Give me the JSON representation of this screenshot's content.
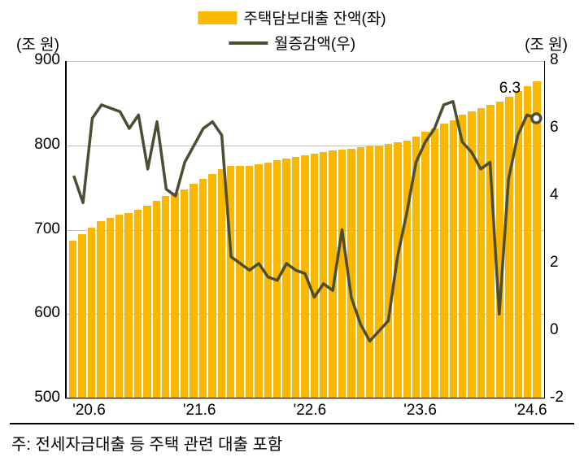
{
  "chart": {
    "type": "bar+line",
    "background_color": "#ffffff",
    "grid_color": "#bfbfbf",
    "axis_color": "#000000",
    "text_color": "#000000",
    "legend": {
      "bar": {
        "label": "주택담보대출 잔액(좌)",
        "color": "#f9b700"
      },
      "line": {
        "label": "월증감액(우)",
        "color": "#4d4d33"
      }
    },
    "y_left": {
      "title": "(조 원)",
      "min": 500,
      "max": 900,
      "ticks": [
        500,
        600,
        700,
        800,
        900
      ]
    },
    "y_right": {
      "title": "(조 원)",
      "min": -2,
      "max": 8,
      "ticks": [
        -2,
        0,
        2,
        4,
        6,
        8
      ]
    },
    "x_ticks": [
      "'20.6",
      "'21.6",
      "'22.6",
      "'23.6",
      "'24.6"
    ],
    "x_tick_positions": [
      0.05,
      0.28,
      0.51,
      0.74,
      0.97
    ],
    "bar_color": "#f9b700",
    "bars": [
      687,
      695,
      702,
      710,
      714,
      718,
      720,
      724,
      728,
      734,
      740,
      744,
      748,
      754,
      760,
      766,
      772,
      776,
      776,
      776,
      778,
      780,
      782,
      784,
      786,
      788,
      790,
      792,
      794,
      795,
      796,
      798,
      800,
      800,
      802,
      804,
      806,
      810,
      816,
      820,
      826,
      830,
      836,
      840,
      844,
      848,
      852,
      858,
      864,
      870,
      876
    ],
    "line_color": "#4d4d33",
    "line_width": 3.5,
    "line_values": [
      4.6,
      3.8,
      6.3,
      6.7,
      6.6,
      6.5,
      6.0,
      6.4,
      4.8,
      6.2,
      4.2,
      4.0,
      5.0,
      5.5,
      6.0,
      6.2,
      5.8,
      2.2,
      2.0,
      1.8,
      2.0,
      1.6,
      1.5,
      2.0,
      1.8,
      1.7,
      1.0,
      1.4,
      1.2,
      3.0,
      1.0,
      0.2,
      -0.3,
      0.0,
      0.3,
      2.2,
      3.5,
      5.0,
      5.6,
      6.0,
      6.7,
      6.8,
      5.6,
      5.3,
      4.8,
      5.0,
      0.5,
      4.5,
      5.8,
      6.4,
      6.3
    ],
    "annotation": {
      "text": "6.3",
      "x": 0.93,
      "y_right": 7.2
    },
    "marker": {
      "x": 0.97,
      "y_right": 6.3,
      "stroke": "#4d4d33",
      "fill": "#ffffff",
      "r": 5.5
    },
    "footer_note": "주: 전세자금대출 등 주택 관련 대출 포함",
    "font_size_axis": 19,
    "font_size_footer": 20
  }
}
